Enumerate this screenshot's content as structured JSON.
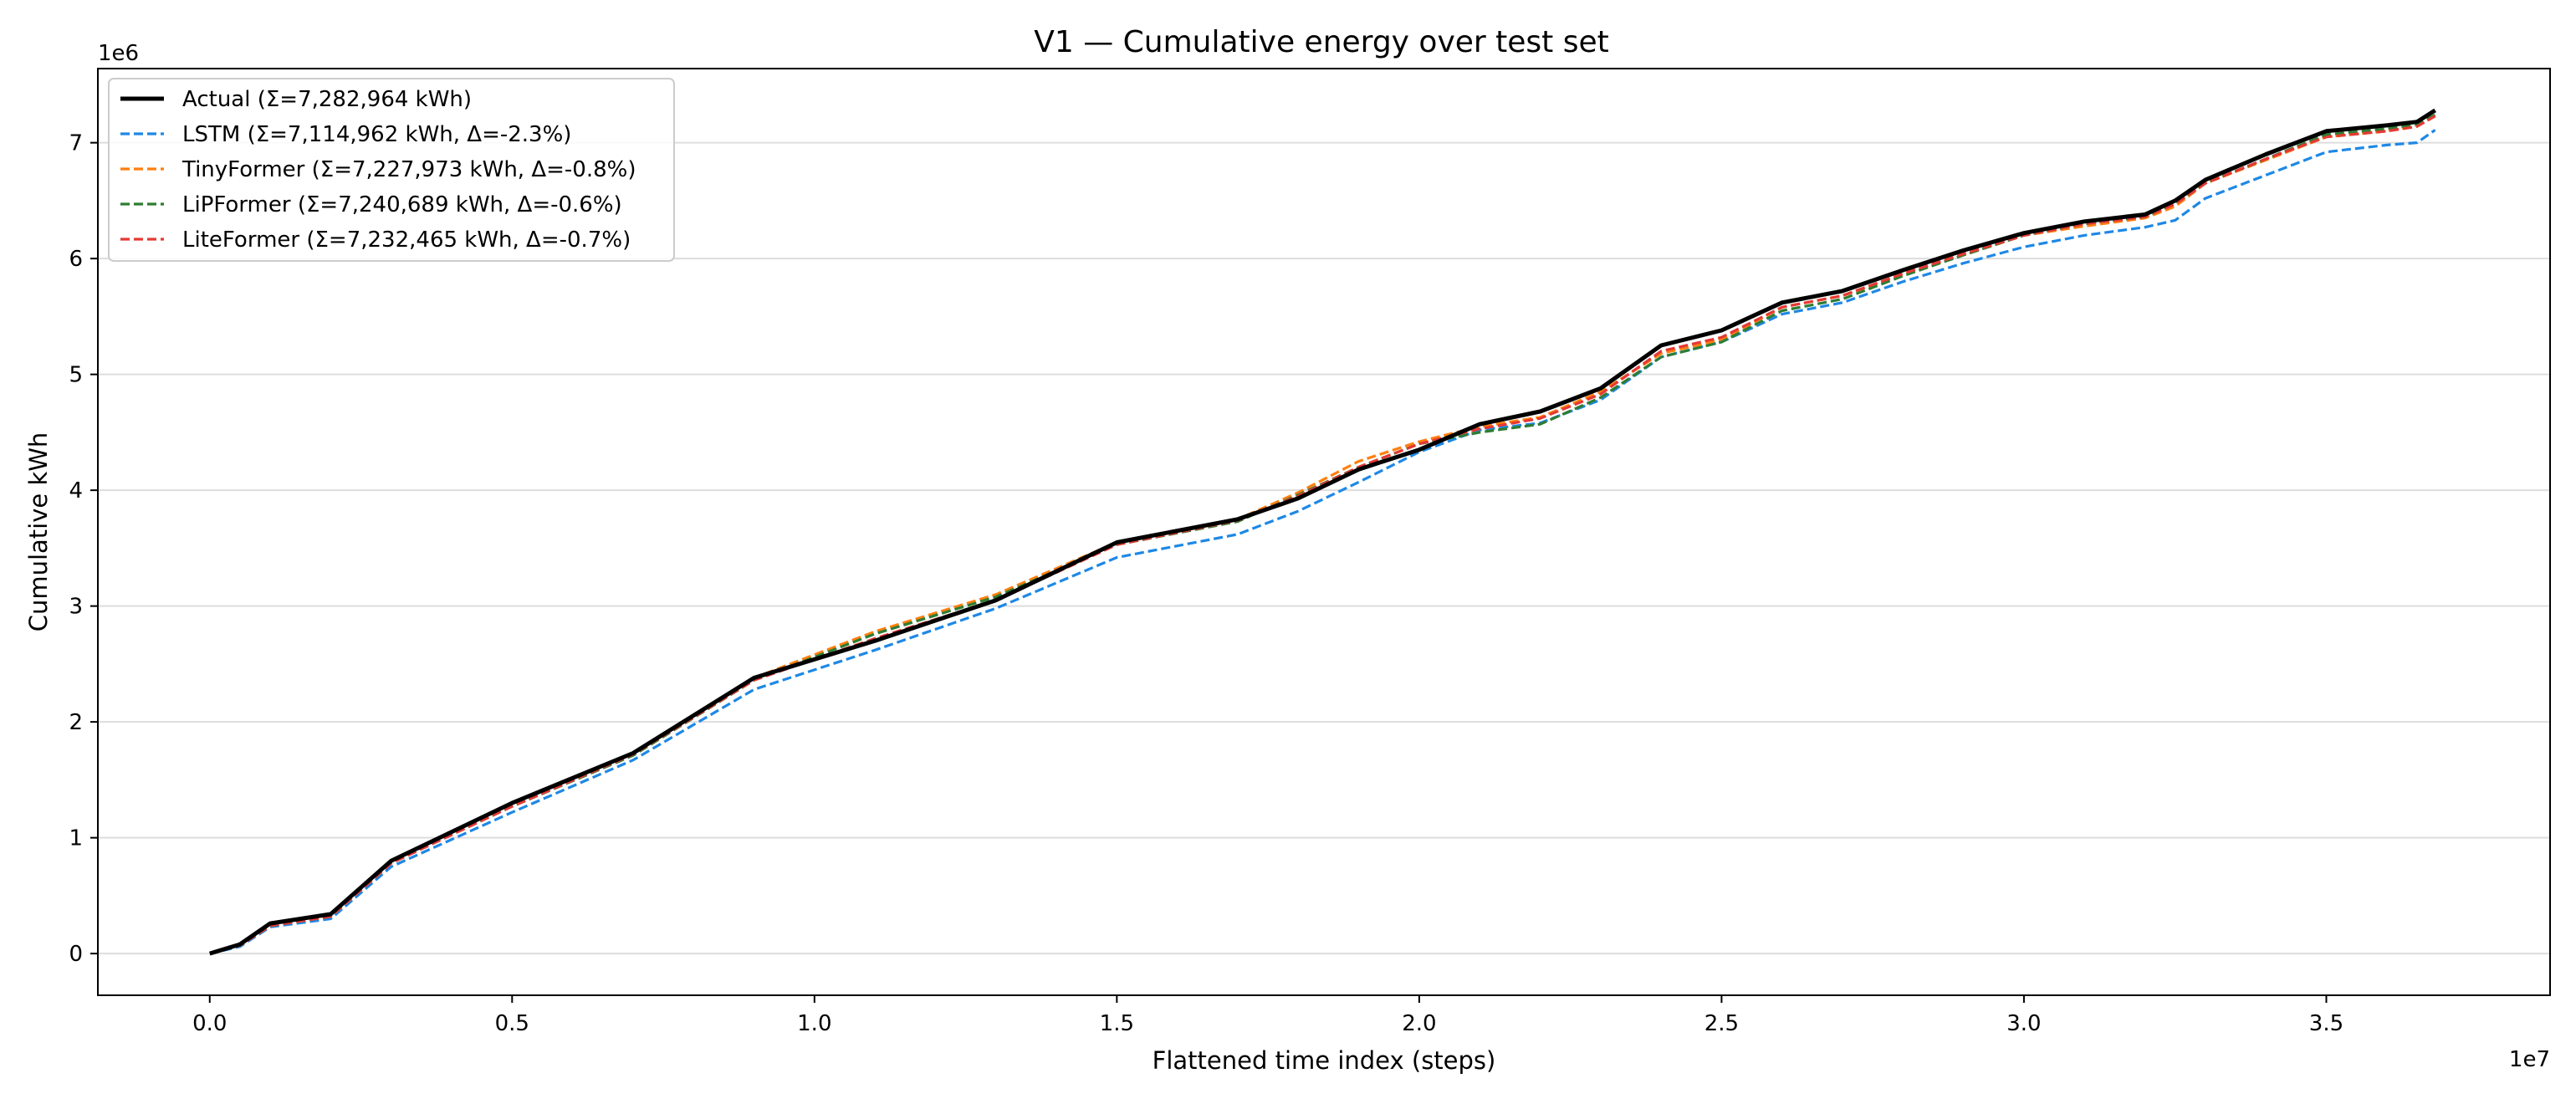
{
  "chart_data": {
    "type": "line",
    "title": "V1 — Cumulative energy over test set",
    "xlabel": "Flattened time index (steps)",
    "ylabel": "Cumulative kWh",
    "x_offset_label": "1e7",
    "y_offset_label": "1e6",
    "xlim": [
      -0.185,
      3.87
    ],
    "ylim": [
      -0.36,
      7.64
    ],
    "xticks": [
      0.0,
      0.5,
      1.0,
      1.5,
      2.0,
      2.5,
      3.0,
      3.5
    ],
    "xtick_labels": [
      "0.0",
      "0.5",
      "1.0",
      "1.5",
      "2.0",
      "2.5",
      "3.0",
      "3.5"
    ],
    "yticks": [
      0,
      1,
      2,
      3,
      4,
      5,
      6,
      7
    ],
    "ytick_labels": [
      "0",
      "1",
      "2",
      "3",
      "4",
      "5",
      "6",
      "7"
    ],
    "grid": "horizontal",
    "legend_position": "top-left",
    "x": [
      0.0,
      0.05,
      0.1,
      0.2,
      0.3,
      0.5,
      0.7,
      0.9,
      1.1,
      1.3,
      1.5,
      1.7,
      1.8,
      1.9,
      2.0,
      2.1,
      2.2,
      2.3,
      2.4,
      2.5,
      2.6,
      2.7,
      2.8,
      2.9,
      3.0,
      3.1,
      3.2,
      3.25,
      3.3,
      3.4,
      3.5,
      3.6,
      3.65,
      3.68
    ],
    "series": [
      {
        "name": "Actual (Σ=7,282,964 kWh)",
        "color": "#000000",
        "style": "solid",
        "values": [
          0.0,
          0.08,
          0.26,
          0.34,
          0.8,
          1.3,
          1.73,
          2.38,
          2.7,
          3.05,
          3.55,
          3.75,
          3.93,
          4.18,
          4.35,
          4.57,
          4.68,
          4.88,
          5.25,
          5.38,
          5.62,
          5.72,
          5.9,
          6.07,
          6.22,
          6.32,
          6.38,
          6.5,
          6.68,
          6.9,
          7.1,
          7.15,
          7.18,
          7.28
        ]
      },
      {
        "name": "LSTM (Σ=7,114,962 kWh, Δ=-2.3%)",
        "color": "#1e88e5",
        "style": "dashed",
        "values": [
          0.0,
          0.06,
          0.23,
          0.3,
          0.75,
          1.22,
          1.67,
          2.28,
          2.62,
          2.98,
          3.42,
          3.62,
          3.82,
          4.07,
          4.33,
          4.52,
          4.58,
          4.78,
          5.15,
          5.28,
          5.52,
          5.62,
          5.8,
          5.96,
          6.1,
          6.2,
          6.27,
          6.33,
          6.52,
          6.72,
          6.92,
          6.98,
          7.0,
          7.11
        ]
      },
      {
        "name": "TinyFormer (Σ=7,227,973 kWh, Δ=-0.8%)",
        "color": "#ff7f0e",
        "style": "dashed",
        "values": [
          0.0,
          0.07,
          0.24,
          0.32,
          0.78,
          1.28,
          1.72,
          2.38,
          2.78,
          3.1,
          3.55,
          3.75,
          3.98,
          4.25,
          4.42,
          4.55,
          4.63,
          4.85,
          5.18,
          5.3,
          5.58,
          5.68,
          5.86,
          6.03,
          6.2,
          6.28,
          6.35,
          6.45,
          6.65,
          6.85,
          7.05,
          7.1,
          7.15,
          7.23
        ]
      },
      {
        "name": "LiPFormer (Σ=7,240,689 kWh, Δ=-0.6%)",
        "color": "#2e7d32",
        "style": "dashed",
        "values": [
          0.0,
          0.07,
          0.24,
          0.32,
          0.79,
          1.27,
          1.71,
          2.36,
          2.76,
          3.08,
          3.53,
          3.73,
          3.96,
          4.2,
          4.4,
          4.5,
          4.57,
          4.8,
          5.15,
          5.28,
          5.55,
          5.65,
          5.85,
          6.03,
          6.2,
          6.3,
          6.36,
          6.48,
          6.65,
          6.86,
          7.07,
          7.12,
          7.16,
          7.24
        ]
      },
      {
        "name": "LiteFormer (Σ=7,232,465 kWh, Δ=-0.7%)",
        "color": "#e53935",
        "style": "dashed",
        "values": [
          0.0,
          0.07,
          0.24,
          0.32,
          0.78,
          1.27,
          1.72,
          2.36,
          2.72,
          3.05,
          3.53,
          3.74,
          3.95,
          4.2,
          4.4,
          4.53,
          4.62,
          4.83,
          5.2,
          5.32,
          5.58,
          5.68,
          5.87,
          6.04,
          6.2,
          6.3,
          6.36,
          6.47,
          6.65,
          6.86,
          7.05,
          7.1,
          7.14,
          7.23
        ]
      }
    ]
  }
}
